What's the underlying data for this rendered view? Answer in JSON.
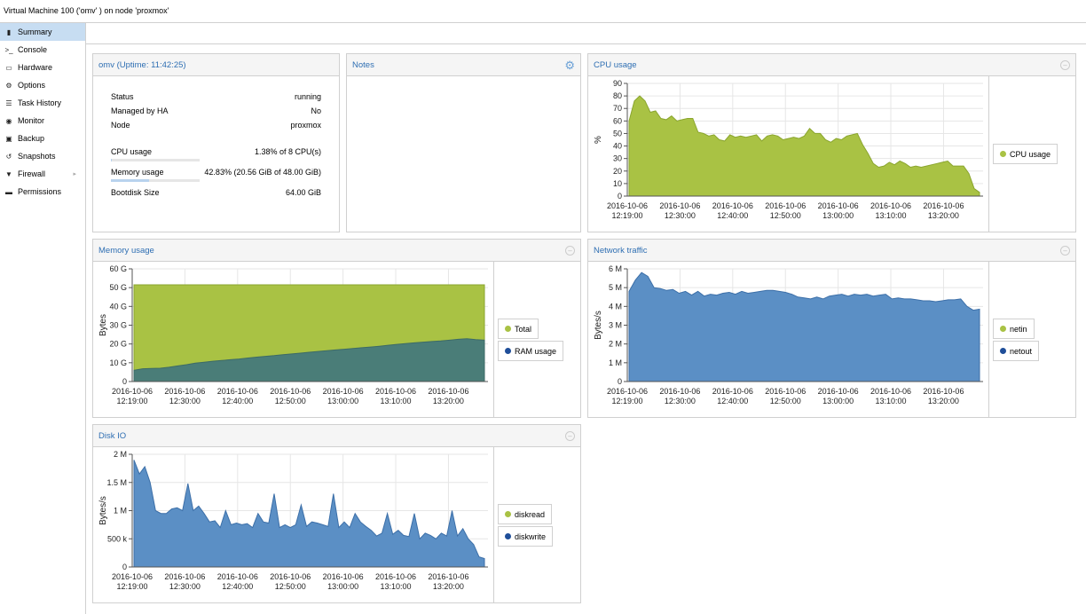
{
  "window_title": "Virtual Machine 100 ('omv' ) on node 'proxmox'",
  "sidebar": {
    "items": [
      {
        "label": "Summary",
        "icon": "book-icon",
        "glyph": "▮"
      },
      {
        "label": "Console",
        "icon": "terminal-icon",
        "glyph": ">_"
      },
      {
        "label": "Hardware",
        "icon": "monitor-icon",
        "glyph": "▭"
      },
      {
        "label": "Options",
        "icon": "gear-icon",
        "glyph": "⚙"
      },
      {
        "label": "Task History",
        "icon": "list-icon",
        "glyph": "☰"
      },
      {
        "label": "Monitor",
        "icon": "eye-icon",
        "glyph": "◉"
      },
      {
        "label": "Backup",
        "icon": "floppy-icon",
        "glyph": "▣"
      },
      {
        "label": "Snapshots",
        "icon": "history-icon",
        "glyph": "↺"
      },
      {
        "label": "Firewall",
        "icon": "shield-icon",
        "glyph": "▼"
      },
      {
        "label": "Permissions",
        "icon": "unlock-icon",
        "glyph": "▬"
      }
    ]
  },
  "status_panel": {
    "title": "omv (Uptime: 11:42:25)",
    "status_label": "Status",
    "status_value": "running",
    "ha_label": "Managed by HA",
    "ha_value": "No",
    "node_label": "Node",
    "node_value": "proxmox",
    "cpu_label": "CPU usage",
    "cpu_value": "1.38% of 8 CPU(s)",
    "cpu_fraction": 0.0138,
    "mem_label": "Memory usage",
    "mem_value": "42.83% (20.56 GiB of 48.00 GiB)",
    "mem_fraction": 0.4283,
    "disk_label": "Bootdisk Size",
    "disk_value": "64.00 GiB"
  },
  "notes_panel": {
    "title": "Notes"
  },
  "colors": {
    "green": "#a9c244",
    "green_line": "#8aa52e",
    "blue": "#5b8fc5",
    "blue_line": "#3c6fa8",
    "teal": "#4a7d78",
    "link": "#2f6fb3"
  },
  "chart_data": [
    {
      "id": "cpu",
      "type": "area",
      "title": "CPU usage",
      "ylabel": "%",
      "ylim": [
        0,
        90
      ],
      "yticks": [
        "0",
        "10",
        "20",
        "30",
        "40",
        "50",
        "60",
        "70",
        "80",
        "90"
      ],
      "xticks": [
        "2016-10-06 12:19:00",
        "2016-10-06 12:30:00",
        "2016-10-06 12:40:00",
        "2016-10-06 12:50:00",
        "2016-10-06 13:00:00",
        "2016-10-06 13:10:00",
        "2016-10-06 13:20:00"
      ],
      "series": [
        {
          "name": "CPU usage",
          "color": "#a9c244",
          "values": [
            60,
            76,
            80,
            76,
            67,
            68,
            62,
            61,
            64,
            60,
            61,
            62,
            62,
            51,
            50,
            48,
            49,
            45,
            44,
            49,
            47,
            48,
            47,
            48,
            49,
            44,
            48,
            49,
            48,
            45,
            46,
            47,
            46,
            48,
            54,
            50,
            50,
            45,
            43,
            46,
            45,
            48,
            49,
            50,
            41,
            34,
            26,
            23,
            24,
            27,
            25,
            28,
            26,
            23,
            24,
            23,
            24,
            25,
            26,
            27,
            28,
            24,
            24,
            24,
            18,
            6,
            3
          ]
        }
      ]
    },
    {
      "id": "memory",
      "type": "area",
      "title": "Memory usage",
      "ylabel": "Bytes",
      "ylim": [
        0,
        60
      ],
      "yticks": [
        "0",
        "10 G",
        "20 G",
        "30 G",
        "40 G",
        "50 G",
        "60 G"
      ],
      "xticks": [
        "2016-10-06 12:19:00",
        "2016-10-06 12:30:00",
        "2016-10-06 12:40:00",
        "2016-10-06 12:50:00",
        "2016-10-06 13:00:00",
        "2016-10-06 13:10:00",
        "2016-10-06 13:20:00"
      ],
      "series": [
        {
          "name": "Total",
          "color": "#a9c244",
          "values": [
            51.5,
            51.5,
            51.5,
            51.5,
            51.5,
            51.5,
            51.5,
            51.5,
            51.5,
            51.5,
            51.5,
            51.5,
            51.5,
            51.5,
            51.5,
            51.5,
            51.5,
            51.5,
            51.5,
            51.5,
            51.5,
            51.5,
            51.5,
            51.5,
            51.5,
            51.5,
            51.5,
            51.5,
            51.5,
            51.5,
            51.5,
            51.5,
            51.5,
            51.5,
            51.5,
            51.5,
            51.5,
            51.5,
            51.5,
            51.5,
            51.5
          ]
        },
        {
          "name": "RAM usage",
          "color": "#1f4e99",
          "values": [
            6,
            6.8,
            7,
            7.1,
            7.6,
            8.3,
            9,
            9.8,
            10.3,
            10.8,
            11.2,
            11.6,
            12,
            12.5,
            13,
            13.4,
            13.8,
            14.3,
            14.7,
            15.1,
            15.6,
            16,
            16.4,
            16.8,
            17.2,
            17.6,
            18,
            18.4,
            18.8,
            19.3,
            19.8,
            20.2,
            20.6,
            21,
            21.3,
            21.6,
            22,
            22.5,
            22.8,
            22.3,
            22
          ]
        }
      ]
    },
    {
      "id": "network",
      "type": "area",
      "title": "Network traffic",
      "ylabel": "Bytes/s",
      "ylim": [
        0,
        6
      ],
      "yticks": [
        "0",
        "1 M",
        "2 M",
        "3 M",
        "4 M",
        "5 M",
        "6 M"
      ],
      "xticks": [
        "2016-10-06 12:19:00",
        "2016-10-06 12:30:00",
        "2016-10-06 12:40:00",
        "2016-10-06 12:50:00",
        "2016-10-06 13:00:00",
        "2016-10-06 13:10:00",
        "2016-10-06 13:20:00"
      ],
      "series": [
        {
          "name": "netin",
          "color": "#a9c244",
          "values": [
            4.8,
            5.4,
            5.8,
            5.6,
            5.0,
            4.95,
            4.85,
            4.9,
            4.7,
            4.8,
            4.6,
            4.8,
            4.55,
            4.65,
            4.6,
            4.7,
            4.75,
            4.65,
            4.8,
            4.7,
            4.75,
            4.8,
            4.85,
            4.85,
            4.8,
            4.75,
            4.65,
            4.5,
            4.45,
            4.4,
            4.5,
            4.4,
            4.55,
            4.6,
            4.65,
            4.55,
            4.65,
            4.6,
            4.65,
            4.55,
            4.6,
            4.65,
            4.4,
            4.45,
            4.4,
            4.4,
            4.35,
            4.3,
            4.3,
            4.25,
            4.3,
            4.35,
            4.35,
            4.4,
            4.0,
            3.8,
            3.85
          ]
        },
        {
          "name": "netout",
          "color": "#1f4e99",
          "values": [
            4.8,
            5.4,
            5.8,
            5.6,
            5.0,
            4.95,
            4.85,
            4.9,
            4.7,
            4.8,
            4.6,
            4.8,
            4.55,
            4.65,
            4.6,
            4.7,
            4.75,
            4.65,
            4.8,
            4.7,
            4.75,
            4.8,
            4.85,
            4.85,
            4.8,
            4.75,
            4.65,
            4.5,
            4.45,
            4.4,
            4.5,
            4.4,
            4.55,
            4.6,
            4.65,
            4.55,
            4.65,
            4.6,
            4.65,
            4.55,
            4.6,
            4.65,
            4.4,
            4.45,
            4.4,
            4.4,
            4.35,
            4.3,
            4.3,
            4.25,
            4.3,
            4.35,
            4.35,
            4.4,
            4.0,
            3.8,
            3.85
          ]
        }
      ]
    },
    {
      "id": "diskio",
      "type": "area",
      "title": "Disk IO",
      "ylabel": "Bytes/s",
      "ylim": [
        0,
        2000
      ],
      "yticks": [
        "0",
        "500 k",
        "1 M",
        "1.5 M",
        "2 M"
      ],
      "xticks": [
        "2016-10-06 12:19:00",
        "2016-10-06 12:30:00",
        "2016-10-06 12:40:00",
        "2016-10-06 12:50:00",
        "2016-10-06 13:00:00",
        "2016-10-06 13:10:00",
        "2016-10-06 13:20:00"
      ],
      "series": [
        {
          "name": "diskread",
          "color": "#a9c244",
          "values": [
            1900,
            1650,
            1780,
            1500,
            1000,
            950,
            950,
            1030,
            1050,
            1000,
            1480,
            1000,
            1080,
            950,
            800,
            820,
            700,
            1000,
            750,
            780,
            750,
            770,
            700,
            950,
            800,
            780,
            1300,
            700,
            750,
            700,
            750,
            1100,
            720,
            800,
            780,
            750,
            720,
            1300,
            700,
            800,
            700,
            950,
            800,
            720,
            650,
            550,
            600,
            950,
            580,
            650,
            560,
            540,
            950,
            500,
            600,
            560,
            500,
            600,
            550,
            1000,
            550,
            680,
            500,
            400,
            180,
            150
          ]
        },
        {
          "name": "diskwrite",
          "color": "#1f4e99",
          "values": [
            1900,
            1650,
            1780,
            1500,
            1000,
            950,
            950,
            1030,
            1050,
            1000,
            1480,
            1000,
            1080,
            950,
            800,
            820,
            700,
            1000,
            750,
            780,
            750,
            770,
            700,
            950,
            800,
            780,
            1300,
            700,
            750,
            700,
            750,
            1100,
            720,
            800,
            780,
            750,
            720,
            1300,
            700,
            800,
            700,
            950,
            800,
            720,
            650,
            550,
            600,
            950,
            580,
            650,
            560,
            540,
            950,
            500,
            600,
            560,
            500,
            600,
            550,
            1000,
            550,
            680,
            500,
            400,
            180,
            150
          ]
        }
      ]
    }
  ]
}
